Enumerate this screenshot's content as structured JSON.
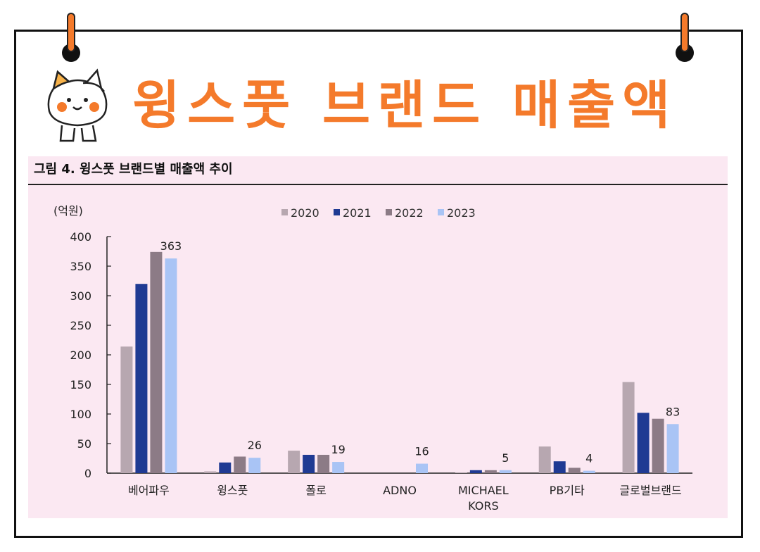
{
  "header": {
    "headline": "윙스풋 브랜드 매출액"
  },
  "chart_data": {
    "type": "bar",
    "title": "그림 4. 윙스풋 브랜드별 매출액 추이",
    "unit": "(억원)",
    "categories": [
      [
        "베어파우"
      ],
      [
        "윙스풋"
      ],
      [
        "폴로"
      ],
      [
        "ADNO"
      ],
      [
        "MICHAEL",
        "KORS"
      ],
      [
        "PB기타"
      ],
      [
        "글로벌브랜드"
      ]
    ],
    "series": [
      {
        "name": "2020",
        "color": "#b7a7b0",
        "values": [
          214,
          3,
          38,
          0,
          1,
          45,
          154
        ]
      },
      {
        "name": "2021",
        "color": "#1f3a93",
        "values": [
          320,
          18,
          31,
          0,
          5,
          20,
          102
        ]
      },
      {
        "name": "2022",
        "color": "#8c7b86",
        "values": [
          374,
          28,
          31,
          0,
          5,
          9,
          92
        ]
      },
      {
        "name": "2023",
        "color": "#a9c4f5",
        "values": [
          363,
          26,
          19,
          16,
          5,
          4,
          83
        ]
      }
    ],
    "data_labels": {
      "series": "2023",
      "values": [
        "363",
        "26",
        "19",
        "16",
        "5",
        "4",
        "83"
      ]
    },
    "ylim": [
      0,
      400
    ],
    "yticks": [
      0,
      50,
      100,
      150,
      200,
      250,
      300,
      350,
      400
    ],
    "legend": "top",
    "grid": false
  }
}
